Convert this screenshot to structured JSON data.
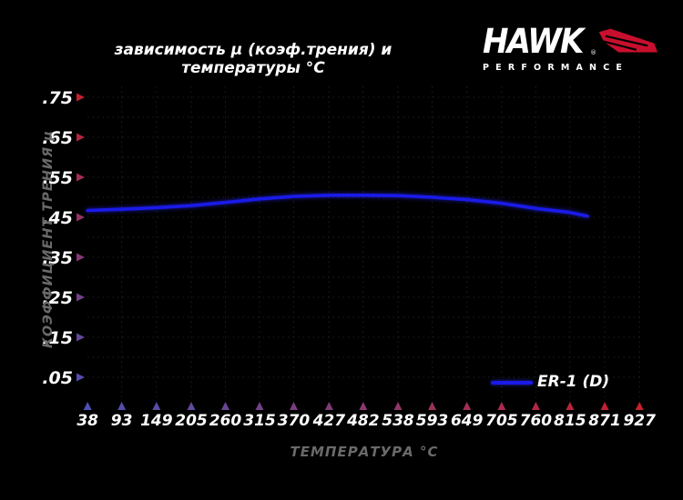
{
  "logo": {
    "brand": "HAWK",
    "registered": "®",
    "subtitle": "PERFORMANCE"
  },
  "chart_data": {
    "type": "line",
    "title": "зависимость μ (коэф.трения) и температуры °C",
    "xlabel": "ТЕМПЕРАТУРА °C",
    "ylabel": "КОЭФФИЦИЕНТ ТРЕНИЯ μ",
    "x_ticks_celsius": [
      38,
      93,
      149,
      205,
      260,
      315,
      370,
      427,
      482,
      538,
      593,
      649,
      705,
      760,
      815,
      871,
      927
    ],
    "y_ticks": [
      0.05,
      0.15,
      0.25,
      0.35,
      0.45,
      0.55,
      0.65,
      0.75
    ],
    "y_tick_labels": [
      ".05",
      ".15",
      ".25",
      ".35",
      ".45",
      ".55",
      ".65",
      ".75"
    ],
    "ylim": [
      0,
      0.777
    ],
    "xlim_celsius": [
      38,
      927
    ],
    "grid": "dotted",
    "grid_y_step": 0.05,
    "legend": {
      "label": "ER-1 (D)",
      "position": "bottom-right"
    },
    "series": [
      {
        "name": "ER-1 (D)",
        "color": "#1a1ae8",
        "points": [
          {
            "c": 38,
            "mu": 0.467
          },
          {
            "c": 93,
            "mu": 0.47
          },
          {
            "c": 149,
            "mu": 0.474
          },
          {
            "c": 205,
            "mu": 0.479
          },
          {
            "c": 260,
            "mu": 0.487
          },
          {
            "c": 315,
            "mu": 0.496
          },
          {
            "c": 370,
            "mu": 0.502
          },
          {
            "c": 427,
            "mu": 0.505
          },
          {
            "c": 482,
            "mu": 0.505
          },
          {
            "c": 538,
            "mu": 0.504
          },
          {
            "c": 593,
            "mu": 0.5
          },
          {
            "c": 649,
            "mu": 0.494
          },
          {
            "c": 705,
            "mu": 0.485
          },
          {
            "c": 760,
            "mu": 0.472
          },
          {
            "c": 815,
            "mu": 0.462
          },
          {
            "c": 843,
            "mu": 0.453
          }
        ]
      }
    ]
  },
  "colors": {
    "background": "#000000",
    "title_text": "#ffffff",
    "tick_label": "#ffffff",
    "axis_label_text": "#6a6a6a",
    "grid": "#212121",
    "curve_blue": "#1a1ae8",
    "arrow_cold_blue": "#4b51b5",
    "arrow_hot_red": "#c81f2b",
    "axis_cold_blue": "#32347e",
    "axis_hot_red": "#c01c24",
    "wing_red": "#c8102e"
  }
}
